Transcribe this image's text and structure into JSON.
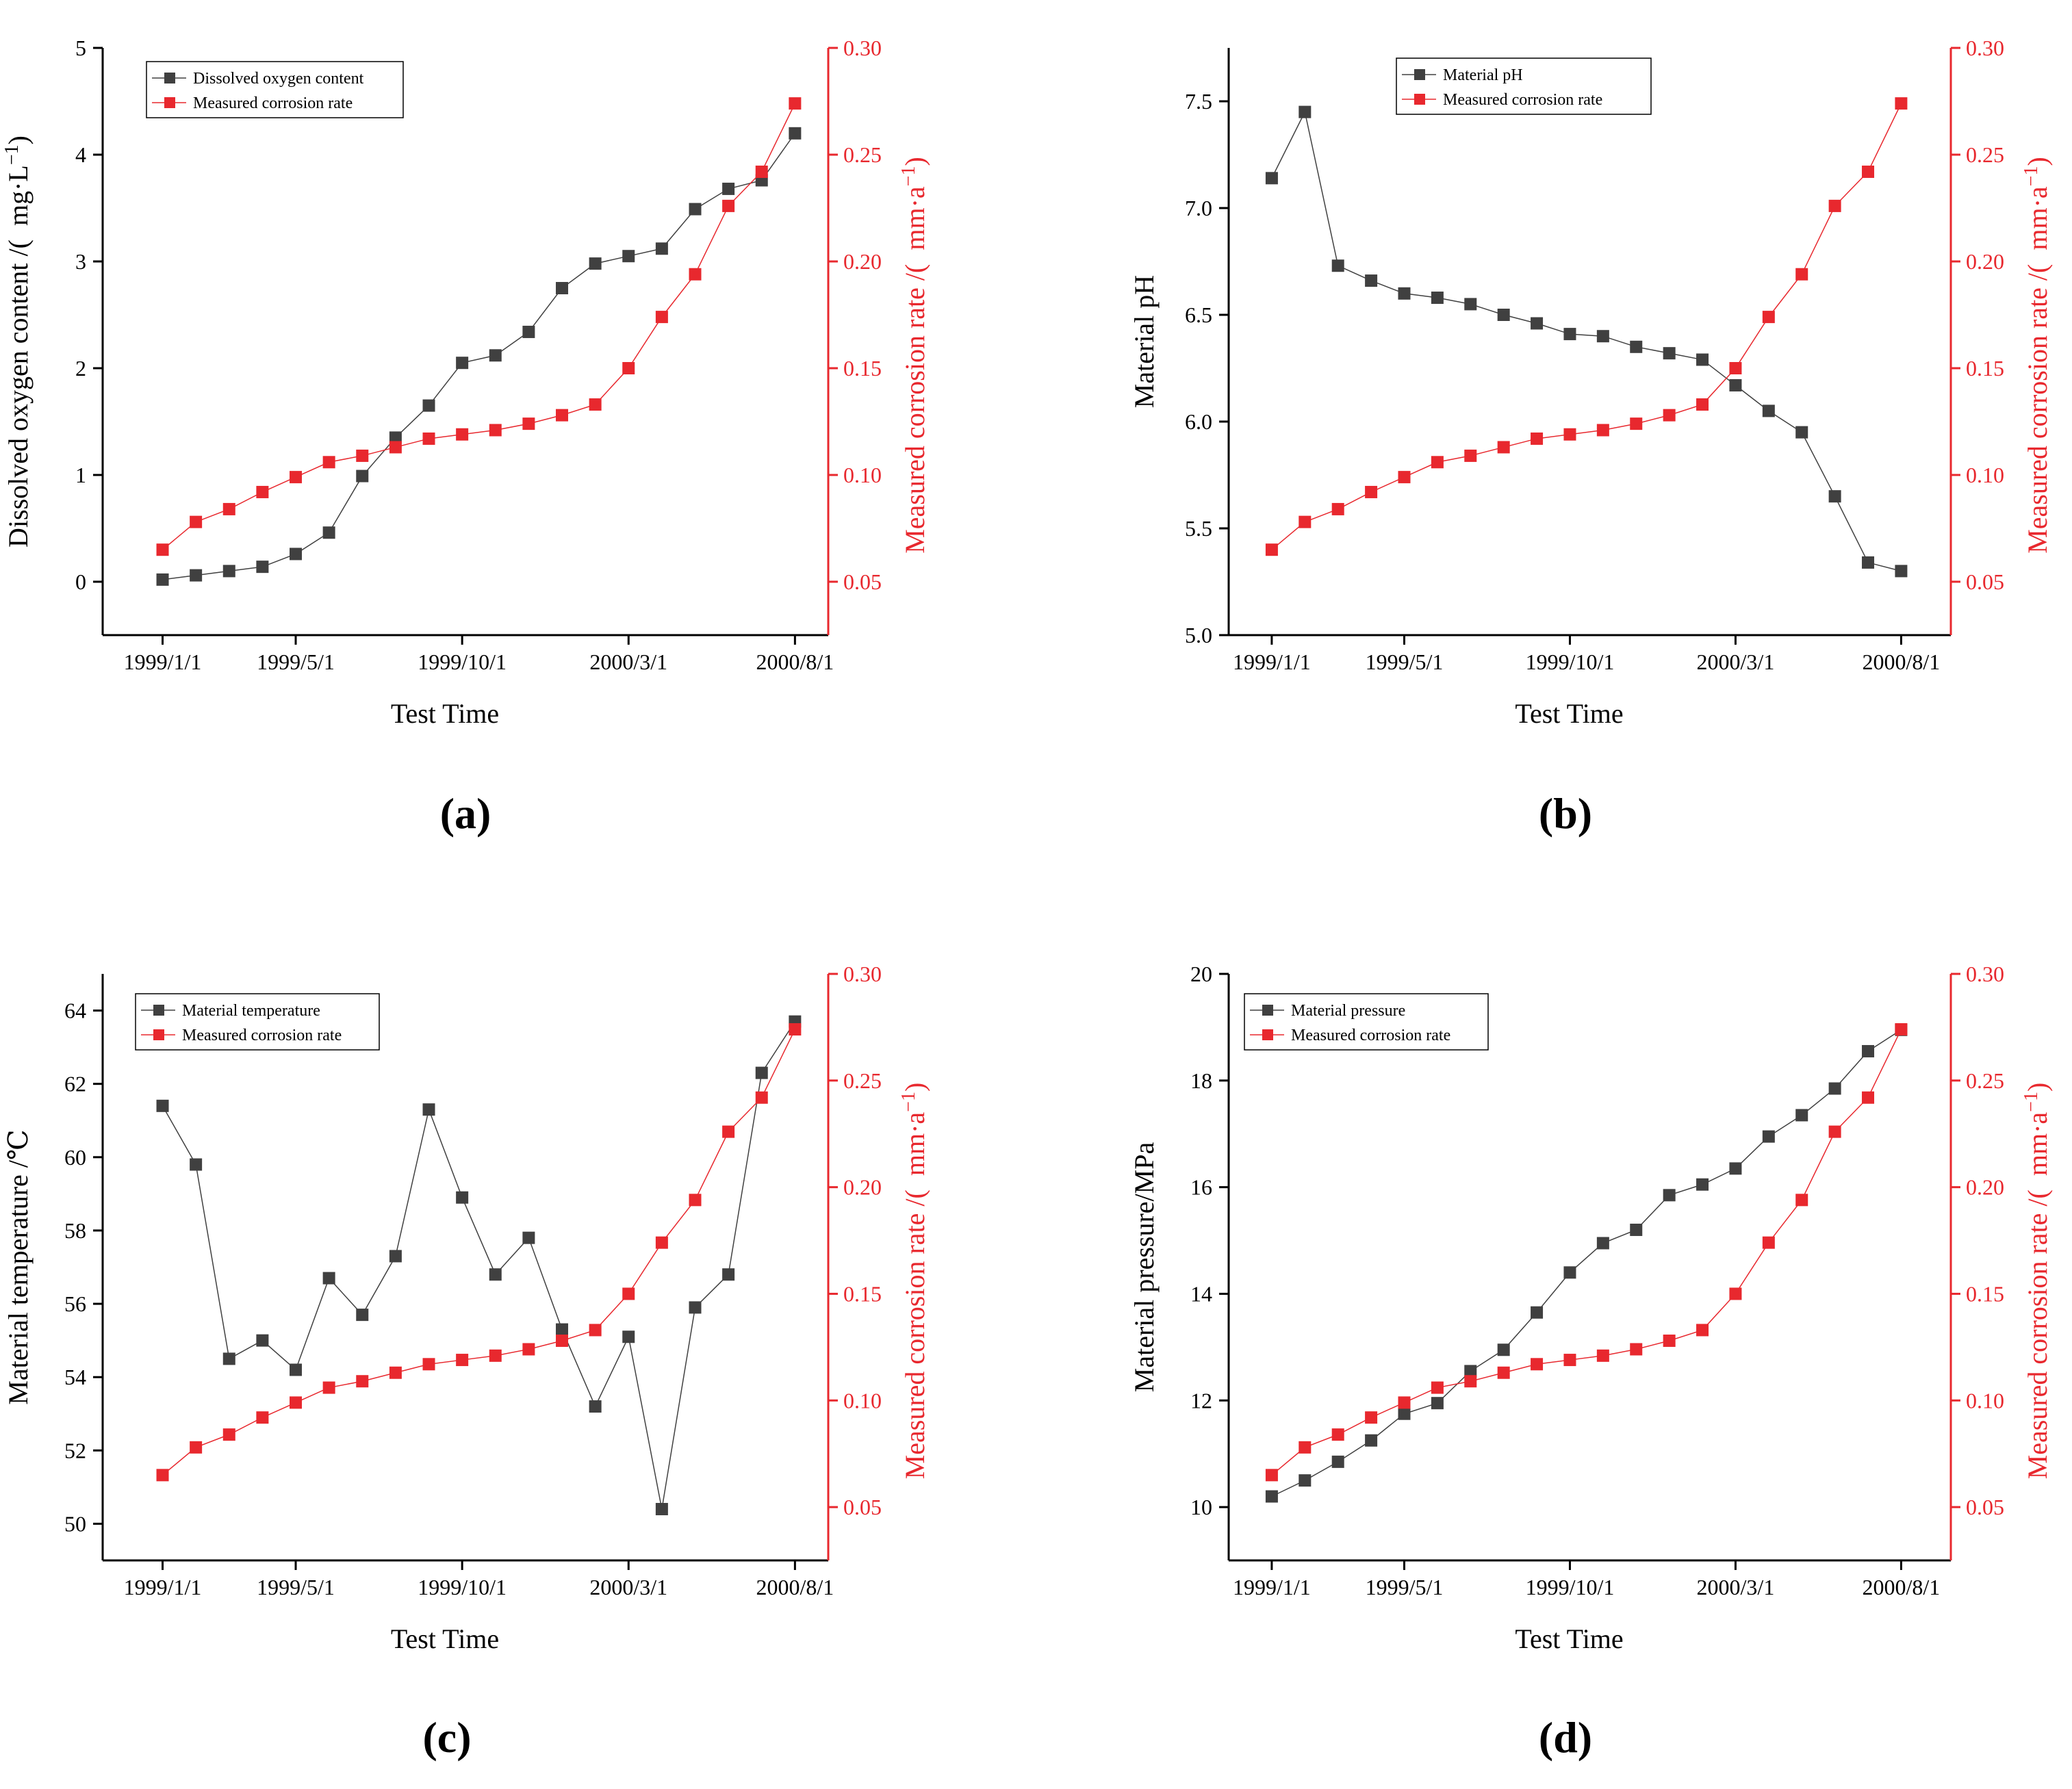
{
  "colors": {
    "primary": "#404040",
    "secondary": "#e8282e",
    "axis": "#000000"
  },
  "chart_data": [
    {
      "type": "line",
      "panel": "(a)",
      "title": "",
      "xlabel": "Test Time",
      "ylabel": "Dissolved oxygen content /(  mg·L",
      "ylabel_sup": "−1",
      "ylabel_tail": ")",
      "y2label": "Measured corrosion rate /(  mm·a",
      "y2label_sup": "−1",
      "y2label_tail": ")",
      "x": [
        0,
        1,
        2,
        3,
        4,
        5,
        6,
        7,
        8,
        9,
        10,
        11,
        12,
        13,
        14,
        15,
        16,
        17,
        18,
        19
      ],
      "xlim": [
        -1.8,
        20
      ],
      "xticks": [
        0,
        4,
        9,
        14,
        19
      ],
      "xtick_labels": [
        "1999/1/1",
        "1999/5/1",
        "1999/10/1",
        "2000/3/1",
        "2000/8/1"
      ],
      "ylim": [
        -0.5,
        5
      ],
      "yticks": [
        0,
        1,
        2,
        3,
        4,
        5
      ],
      "ytick_labels": [
        "0",
        "1",
        "2",
        "3",
        "4",
        "5"
      ],
      "y2lim": [
        0.025,
        0.3
      ],
      "y2ticks": [
        0.05,
        0.1,
        0.15,
        0.2,
        0.25,
        0.3
      ],
      "y2tick_labels": [
        "0.05",
        "0.10",
        "0.15",
        "0.20",
        "0.25",
        "0.30"
      ],
      "legend_position": "top-left",
      "series": [
        {
          "name": "Dissolved oxygen content",
          "axis": "left",
          "values": [
            0.02,
            0.06,
            0.1,
            0.14,
            0.26,
            0.46,
            0.99,
            1.35,
            1.65,
            2.05,
            2.12,
            2.34,
            2.75,
            2.98,
            3.05,
            3.12,
            3.49,
            3.68,
            3.76,
            4.2
          ]
        },
        {
          "name": "Measured corrosion rate",
          "axis": "right",
          "values": [
            0.065,
            0.078,
            0.084,
            0.092,
            0.099,
            0.106,
            0.109,
            0.113,
            0.117,
            0.119,
            0.121,
            0.124,
            0.128,
            0.133,
            0.15,
            0.174,
            0.194,
            0.226,
            0.242,
            0.274
          ]
        }
      ]
    },
    {
      "type": "line",
      "panel": "(b)",
      "title": "",
      "xlabel": "Test Time",
      "ylabel": "Material pH",
      "ylabel_sup": "",
      "ylabel_tail": "",
      "y2label": "Measured corrosion rate /(  mm·a",
      "y2label_sup": "−1",
      "y2label_tail": ")",
      "x": [
        0,
        1,
        2,
        3,
        4,
        5,
        6,
        7,
        8,
        9,
        10,
        11,
        12,
        13,
        14,
        15,
        16,
        17,
        18,
        19
      ],
      "xlim": [
        -1.3,
        20.5
      ],
      "xticks": [
        0,
        4,
        9,
        14,
        19
      ],
      "xtick_labels": [
        "1999/1/1",
        "1999/5/1",
        "1999/10/1",
        "2000/3/1",
        "2000/8/1"
      ],
      "ylim": [
        5.0,
        7.75
      ],
      "yticks": [
        5.0,
        5.5,
        6.0,
        6.5,
        7.0,
        7.5
      ],
      "ytick_labels": [
        "5.0",
        "5.5",
        "6.0",
        "6.5",
        "7.0",
        "7.5"
      ],
      "y2lim": [
        0.025,
        0.3
      ],
      "y2ticks": [
        0.05,
        0.1,
        0.15,
        0.2,
        0.25,
        0.3
      ],
      "y2tick_labels": [
        "0.05",
        "0.10",
        "0.15",
        "0.20",
        "0.25",
        "0.30"
      ],
      "legend_position": "top-center",
      "series": [
        {
          "name": "Material pH",
          "axis": "left",
          "values": [
            7.14,
            7.45,
            6.73,
            6.66,
            6.6,
            6.58,
            6.55,
            6.5,
            6.46,
            6.41,
            6.4,
            6.35,
            6.32,
            6.29,
            6.17,
            6.05,
            5.95,
            5.65,
            5.34,
            5.3
          ]
        },
        {
          "name": "Measured corrosion rate",
          "axis": "right",
          "values": [
            0.065,
            0.078,
            0.084,
            0.092,
            0.099,
            0.106,
            0.109,
            0.113,
            0.117,
            0.119,
            0.121,
            0.124,
            0.128,
            0.133,
            0.15,
            0.174,
            0.194,
            0.226,
            0.242,
            0.274
          ]
        }
      ]
    },
    {
      "type": "line",
      "panel": "(c)",
      "title": "",
      "xlabel": "Test Time",
      "ylabel": "Material temperature /℃",
      "ylabel_sup": "",
      "ylabel_tail": "",
      "y2label": "Measured corrosion rate /(  mm·a",
      "y2label_sup": "−1",
      "y2label_tail": ")",
      "x": [
        0,
        1,
        2,
        3,
        4,
        5,
        6,
        7,
        8,
        9,
        10,
        11,
        12,
        13,
        14,
        15,
        16,
        17,
        18,
        19
      ],
      "xlim": [
        -1.8,
        20
      ],
      "xticks": [
        0,
        4,
        9,
        14,
        19
      ],
      "xtick_labels": [
        "1999/1/1",
        "1999/5/1",
        "1999/10/1",
        "2000/3/1",
        "2000/8/1"
      ],
      "ylim": [
        49,
        65
      ],
      "yticks": [
        50,
        52,
        54,
        56,
        58,
        60,
        62,
        64
      ],
      "ytick_labels": [
        "50",
        "52",
        "54",
        "56",
        "58",
        "60",
        "62",
        "64"
      ],
      "y2lim": [
        0.025,
        0.3
      ],
      "y2ticks": [
        0.05,
        0.1,
        0.15,
        0.2,
        0.25,
        0.3
      ],
      "y2tick_labels": [
        "0.05",
        "0.10",
        "0.15",
        "0.20",
        "0.25",
        "0.30"
      ],
      "legend_position": "top-left",
      "series": [
        {
          "name": "Material temperature",
          "axis": "left",
          "values": [
            61.4,
            59.8,
            54.5,
            55.0,
            54.2,
            56.7,
            55.7,
            57.3,
            61.3,
            58.9,
            56.8,
            57.8,
            55.3,
            53.2,
            55.1,
            50.4,
            55.9,
            56.8,
            62.3,
            63.7
          ]
        },
        {
          "name": "Measured corrosion rate",
          "axis": "right",
          "values": [
            0.065,
            0.078,
            0.084,
            0.092,
            0.099,
            0.106,
            0.109,
            0.113,
            0.117,
            0.119,
            0.121,
            0.124,
            0.128,
            0.133,
            0.15,
            0.174,
            0.194,
            0.226,
            0.242,
            0.274
          ]
        }
      ]
    },
    {
      "type": "line",
      "panel": "(d)",
      "title": "",
      "xlabel": "Test Time",
      "ylabel": "Material pressure/MPa",
      "ylabel_sup": "",
      "ylabel_tail": "",
      "y2label": "Measured corrosion rate /(  mm·a",
      "y2label_sup": "−1",
      "y2label_tail": ")",
      "x": [
        0,
        1,
        2,
        3,
        4,
        5,
        6,
        7,
        8,
        9,
        10,
        11,
        12,
        13,
        14,
        15,
        16,
        17,
        18,
        19
      ],
      "xlim": [
        -1.3,
        20.5
      ],
      "xticks": [
        0,
        4,
        9,
        14,
        19
      ],
      "xtick_labels": [
        "1999/1/1",
        "1999/5/1",
        "1999/10/1",
        "2000/3/1",
        "2000/8/1"
      ],
      "ylim": [
        9,
        20
      ],
      "yticks": [
        10,
        12,
        14,
        16,
        18,
        20
      ],
      "ytick_labels": [
        "10",
        "12",
        "14",
        "16",
        "18",
        "20"
      ],
      "y2lim": [
        0.025,
        0.3
      ],
      "y2ticks": [
        0.05,
        0.1,
        0.15,
        0.2,
        0.25,
        0.3
      ],
      "y2tick_labels": [
        "0.05",
        "0.10",
        "0.15",
        "0.20",
        "0.25",
        "0.30"
      ],
      "legend_position": "top-left",
      "series": [
        {
          "name": "Material pressure",
          "axis": "left",
          "values": [
            10.2,
            10.5,
            10.85,
            11.25,
            11.75,
            11.95,
            12.55,
            12.95,
            13.65,
            14.4,
            14.95,
            15.2,
            15.85,
            16.05,
            16.35,
            16.95,
            17.35,
            17.85,
            18.55,
            18.95
          ]
        },
        {
          "name": "Measured corrosion rate",
          "axis": "right",
          "values": [
            0.065,
            0.078,
            0.084,
            0.092,
            0.099,
            0.106,
            0.109,
            0.113,
            0.117,
            0.119,
            0.121,
            0.124,
            0.128,
            0.133,
            0.15,
            0.174,
            0.194,
            0.226,
            0.242,
            0.274
          ]
        }
      ]
    }
  ]
}
